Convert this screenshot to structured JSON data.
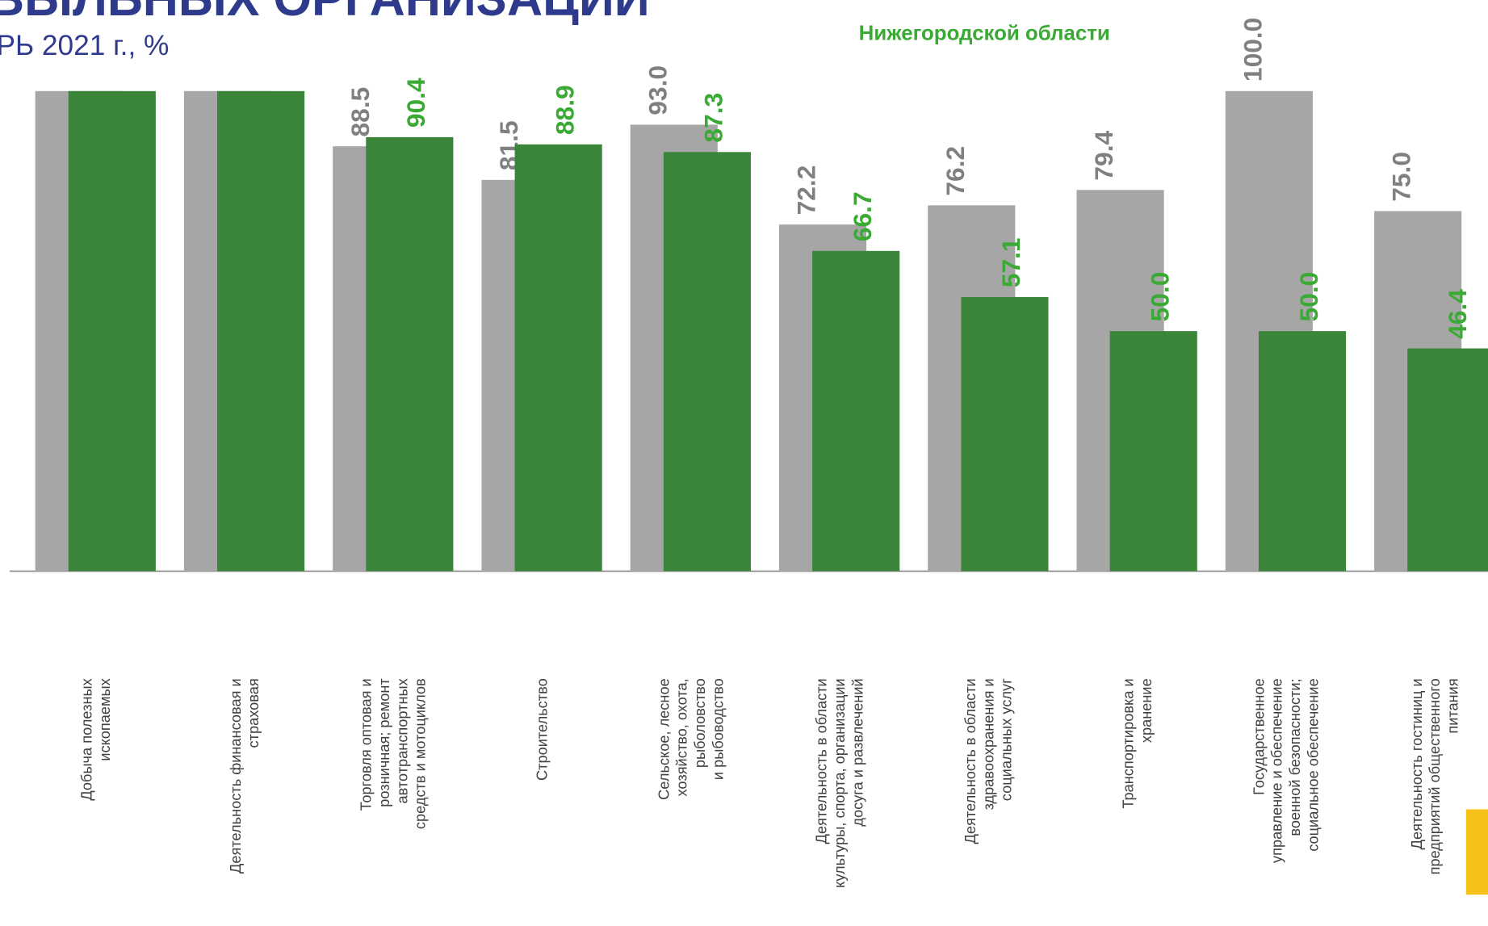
{
  "chart_data": {
    "type": "bar",
    "title": "ВЫЛЬНЫХ ОРГАНИЗАЦИЙ",
    "subtitle": "РЬ 2021 г., %",
    "categories": [
      "Добыча полезных\nископаемых",
      "Деятельность финансовая и\nстраховая",
      "Торговля оптовая и\nрозничная; ремонт\nавтотранспортных\nсредств и мотоциклов",
      "Строительство",
      "Сельское, лесное\nхозяйство, охота,\nрыболовство\nи рыбоводство",
      "Деятельность в области\nкультуры, спорта, организации\nдосуга и развлечений",
      "Деятельность в области\nздравоохранения и\nсоциальных услуг",
      "Транспортировка и\nхранение",
      "Государственное\nуправление и обеспечение\nвоенной безопасности;\nсоциальное обеспечение",
      "Деятельность гостиниц и\nпредприятий общественного\nпитания"
    ],
    "series": [
      {
        "color": "#a6a6a6",
        "label_color": "#808080",
        "values": [
          100,
          100,
          88.5,
          81.5,
          93.0,
          72.2,
          76.2,
          79.4,
          100.0,
          75.0
        ],
        "value_labels": [
          null,
          null,
          "88.5",
          "81.5",
          "93.0",
          "72.2",
          "76.2",
          "79.4",
          "100.0",
          "75.0"
        ]
      },
      {
        "name": "Нижегородской области",
        "color": "#3a8539",
        "label_color": "#3aaa35",
        "values": [
          100,
          100,
          90.4,
          88.9,
          87.3,
          66.7,
          57.1,
          50.0,
          50.0,
          46.4
        ],
        "value_labels": [
          null,
          null,
          "90.4",
          "88.9",
          "87.3",
          "66.7",
          "57.1",
          "50.0",
          "50.0",
          "46.4"
        ]
      }
    ],
    "ylim": [
      0,
      100
    ]
  }
}
